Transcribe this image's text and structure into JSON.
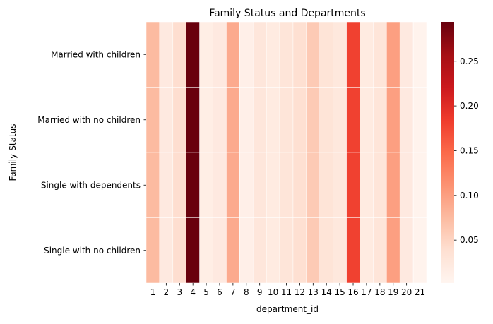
{
  "chart_data": {
    "type": "heatmap",
    "title": "Family Status and Departments",
    "xlabel": "department_id",
    "ylabel": "Family-Status",
    "colormap": "Reds",
    "x": [
      "1",
      "2",
      "3",
      "4",
      "5",
      "6",
      "7",
      "8",
      "9",
      "10",
      "11",
      "12",
      "13",
      "14",
      "15",
      "16",
      "17",
      "18",
      "19",
      "20",
      "21"
    ],
    "y": [
      "Married with children",
      "Married with no children",
      "Single with dependents",
      "Single with no children"
    ],
    "values": [
      [
        0.075,
        0.022,
        0.04,
        0.293,
        0.015,
        0.022,
        0.09,
        0.012,
        0.028,
        0.02,
        0.03,
        0.038,
        0.06,
        0.032,
        0.025,
        0.18,
        0.02,
        0.03,
        0.1,
        0.022,
        0.006
      ],
      [
        0.075,
        0.022,
        0.04,
        0.293,
        0.015,
        0.022,
        0.09,
        0.012,
        0.028,
        0.02,
        0.03,
        0.038,
        0.06,
        0.032,
        0.025,
        0.18,
        0.02,
        0.03,
        0.1,
        0.022,
        0.006
      ],
      [
        0.075,
        0.022,
        0.04,
        0.293,
        0.015,
        0.022,
        0.09,
        0.012,
        0.028,
        0.02,
        0.03,
        0.038,
        0.06,
        0.032,
        0.025,
        0.18,
        0.02,
        0.03,
        0.1,
        0.022,
        0.006
      ],
      [
        0.075,
        0.022,
        0.04,
        0.293,
        0.015,
        0.022,
        0.09,
        0.012,
        0.028,
        0.02,
        0.03,
        0.038,
        0.06,
        0.032,
        0.025,
        0.18,
        0.02,
        0.03,
        0.1,
        0.022,
        0.006
      ]
    ],
    "colorbar": {
      "range": [
        0.002,
        0.294
      ],
      "ticks": [
        0.05,
        0.1,
        0.15,
        0.2,
        0.25
      ],
      "tick_labels": [
        "0.05",
        "0.10",
        "0.15",
        "0.20",
        "0.25"
      ]
    },
    "grid": false,
    "legend": "colorbar-right"
  }
}
